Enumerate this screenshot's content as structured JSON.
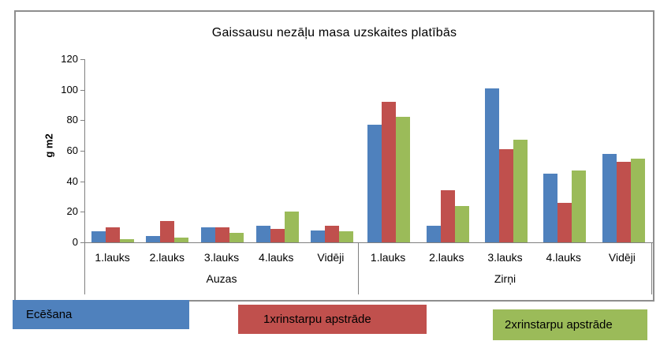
{
  "chart_data": {
    "type": "bar",
    "title": "Gaissausu nezāļu masa uzskaites platībās",
    "ylabel": "g m2",
    "xlabel": "",
    "ylim": [
      0,
      120
    ],
    "yticks": [
      0,
      20,
      40,
      60,
      80,
      100,
      120
    ],
    "grid": false,
    "legend_position": "bottom",
    "groups": [
      {
        "label": "Auzas",
        "categories": [
          "1.lauks",
          "2.lauks",
          "3.lauks",
          "4.lauks",
          "Vidēji"
        ]
      },
      {
        "label": "Zirņi",
        "categories": [
          "1.lauks",
          "2.lauks",
          "3.lauks",
          "4.lauks",
          "Vidēji"
        ]
      }
    ],
    "series": [
      {
        "name": "Ecēšana",
        "color": "#4F81BD",
        "values": [
          [
            7,
            4,
            10,
            11,
            8
          ],
          [
            77,
            11,
            101,
            45,
            58
          ]
        ]
      },
      {
        "name": "1xrinstarpu apstrāde",
        "color": "#C0504D",
        "values": [
          [
            10,
            14,
            10,
            9,
            11
          ],
          [
            92,
            34,
            61,
            26,
            53
          ]
        ]
      },
      {
        "name": "2xrinstarpu apstrāde",
        "color": "#9BBB59",
        "values": [
          [
            2,
            3,
            6,
            20,
            7
          ],
          [
            82,
            24,
            67,
            47,
            55
          ]
        ]
      }
    ]
  }
}
